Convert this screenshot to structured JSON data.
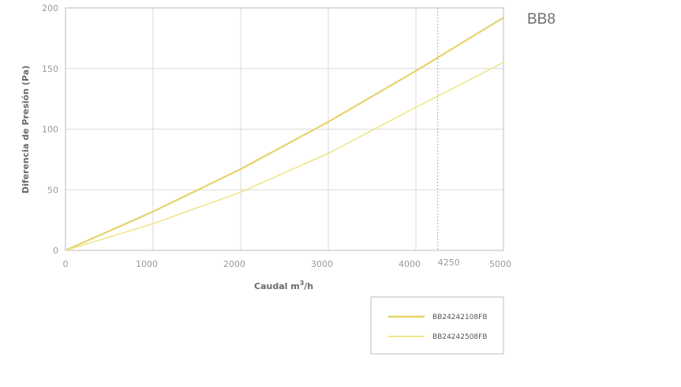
{
  "chart_data": {
    "type": "line",
    "title": "BB8",
    "xlabel_main": "Caudal m",
    "xlabel_sup": "3",
    "xlabel_tail": "/h",
    "ylabel": "Diferencia de Presión (Pa)",
    "xlim": [
      0,
      5000
    ],
    "ylim": [
      0,
      200
    ],
    "x_ticks": [
      0,
      1000,
      2000,
      3000,
      4000,
      5000
    ],
    "x_tick_labels": [
      "0",
      "1000",
      "2000",
      "3000",
      "4000",
      "5000"
    ],
    "y_ticks": [
      0,
      50,
      100,
      150,
      200
    ],
    "y_tick_labels": [
      "0",
      "50",
      "100",
      "150",
      "200"
    ],
    "marker_x": 4250,
    "marker_label": "4250",
    "grid": true,
    "legend_position": "bottom-right",
    "x": [
      0,
      1000,
      2000,
      3000,
      4000,
      5000
    ],
    "series": [
      {
        "name": "BB24242108FB",
        "values": [
          0,
          32,
          67,
          106,
          148,
          192
        ],
        "color": "#e6d36a",
        "width": 2.2
      },
      {
        "name": "BB24242508FB",
        "values": [
          0,
          22,
          48,
          80,
          118,
          155
        ],
        "color": "#efe27e",
        "width": 1.4
      }
    ],
    "colors": {
      "axis": "#bdbdbd",
      "grid": "#cfcfcf",
      "marker": "#9a9a9a",
      "legend_border": "#bdbdbd"
    }
  }
}
